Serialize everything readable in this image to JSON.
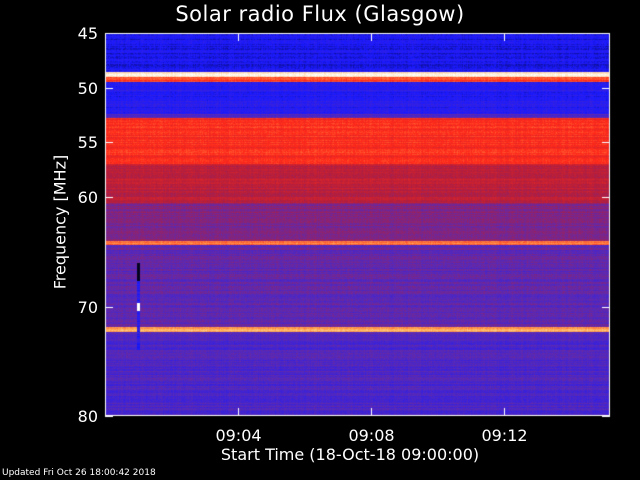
{
  "chart_data": {
    "type": "heatmap",
    "title": "Solar radio Flux (Glasgow)",
    "ylabel": "Frequency [MHz]",
    "xlabel": "Start Time (18-Oct-18 09:00:00)",
    "y_ticks": [
      45,
      50,
      55,
      60,
      70,
      80
    ],
    "ylim": [
      45,
      80
    ],
    "y_axis_inverted": true,
    "x_ticks": [
      {
        "minutes": 4,
        "label": "09:04"
      },
      {
        "minutes": 8,
        "label": "09:08"
      },
      {
        "minutes": 12,
        "label": "09:12"
      }
    ],
    "xlim_minutes": [
      0,
      15.2
    ],
    "colormap": [
      "#000000",
      "#1a1aff",
      "#5a2ab4",
      "#b41e3c",
      "#ff2a1a",
      "#ffb45a",
      "#ffffff"
    ],
    "frequency_bands": [
      {
        "from_mhz": 45.0,
        "to_mhz": 48.6,
        "intensity": 0.16
      },
      {
        "from_mhz": 48.6,
        "to_mhz": 49.0,
        "intensity": 0.95
      },
      {
        "from_mhz": 49.0,
        "to_mhz": 49.5,
        "intensity": 0.7
      },
      {
        "from_mhz": 49.5,
        "to_mhz": 52.4,
        "intensity": 0.2
      },
      {
        "from_mhz": 52.4,
        "to_mhz": 52.8,
        "intensity": 0.3
      },
      {
        "from_mhz": 52.8,
        "to_mhz": 57.0,
        "intensity": 0.66
      },
      {
        "from_mhz": 57.0,
        "to_mhz": 60.5,
        "intensity": 0.52
      },
      {
        "from_mhz": 60.5,
        "to_mhz": 64.0,
        "intensity": 0.4
      },
      {
        "from_mhz": 64.0,
        "to_mhz": 64.4,
        "intensity": 0.75
      },
      {
        "from_mhz": 64.4,
        "to_mhz": 71.9,
        "intensity": 0.34
      },
      {
        "from_mhz": 71.9,
        "to_mhz": 72.3,
        "intensity": 0.82
      },
      {
        "from_mhz": 72.3,
        "to_mhz": 80.0,
        "intensity": 0.3
      }
    ],
    "burst_events": [
      {
        "minute": 1.0,
        "from_mhz": 66.0,
        "to_mhz": 74.0,
        "note": "narrow vertical streak"
      }
    ]
  },
  "footer": {
    "updated": "Updated Fri Oct 26 18:00:42 2018"
  }
}
